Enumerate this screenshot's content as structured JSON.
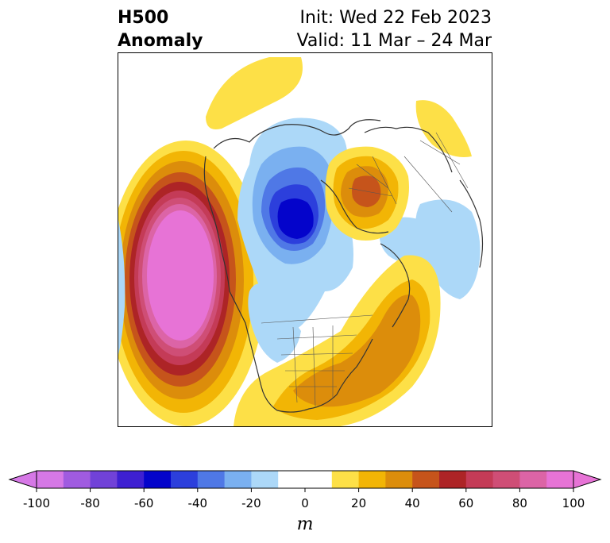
{
  "title": {
    "left_line1": "H500",
    "left_line2": "Anomaly",
    "right_line1": "Init: Wed 22 Feb 2023",
    "right_line2": "Valid: 11 Mar – 24 Mar"
  },
  "colorbar": {
    "unit": "m",
    "range": [
      -100,
      100
    ],
    "step": 10,
    "extend": "both",
    "colors": [
      "#d678e6",
      "#a05be0",
      "#7142d8",
      "#3e20d2",
      "#0404cb",
      "#2c3fdc",
      "#4f78e6",
      "#7ab0f0",
      "#acd8f8",
      "#ffffff",
      "#ffffff",
      "#fde047",
      "#f2b505",
      "#dc8d0b",
      "#c6541b",
      "#ad2426",
      "#c43b57",
      "#cf4e76",
      "#dc64a6",
      "#e773d6"
    ],
    "ticks": [
      {
        "value": -100,
        "label": "-100"
      },
      {
        "value": -80,
        "label": "-80"
      },
      {
        "value": -60,
        "label": "-60"
      },
      {
        "value": -40,
        "label": "-40"
      },
      {
        "value": -20,
        "label": "-20"
      },
      {
        "value": 0,
        "label": "0"
      },
      {
        "value": 20,
        "label": "20"
      },
      {
        "value": 40,
        "label": "40"
      },
      {
        "value": 60,
        "label": "60"
      },
      {
        "value": 80,
        "label": "80"
      },
      {
        "value": 100,
        "label": "100"
      }
    ]
  },
  "map": {
    "projection": "polar stereographic, North Pole",
    "field": "500 hPa height anomaly",
    "features": [
      {
        "name": "pacific-ridge",
        "sign": "positive",
        "peak": 100
      },
      {
        "name": "arctic-trough",
        "sign": "negative",
        "peak": -60
      },
      {
        "name": "atlantic-ridge",
        "sign": "positive",
        "peak": 40
      },
      {
        "name": "eurasia-ridge",
        "sign": "positive",
        "peak": 50
      },
      {
        "name": "siberia-trough",
        "sign": "negative",
        "peak": -20
      }
    ]
  }
}
